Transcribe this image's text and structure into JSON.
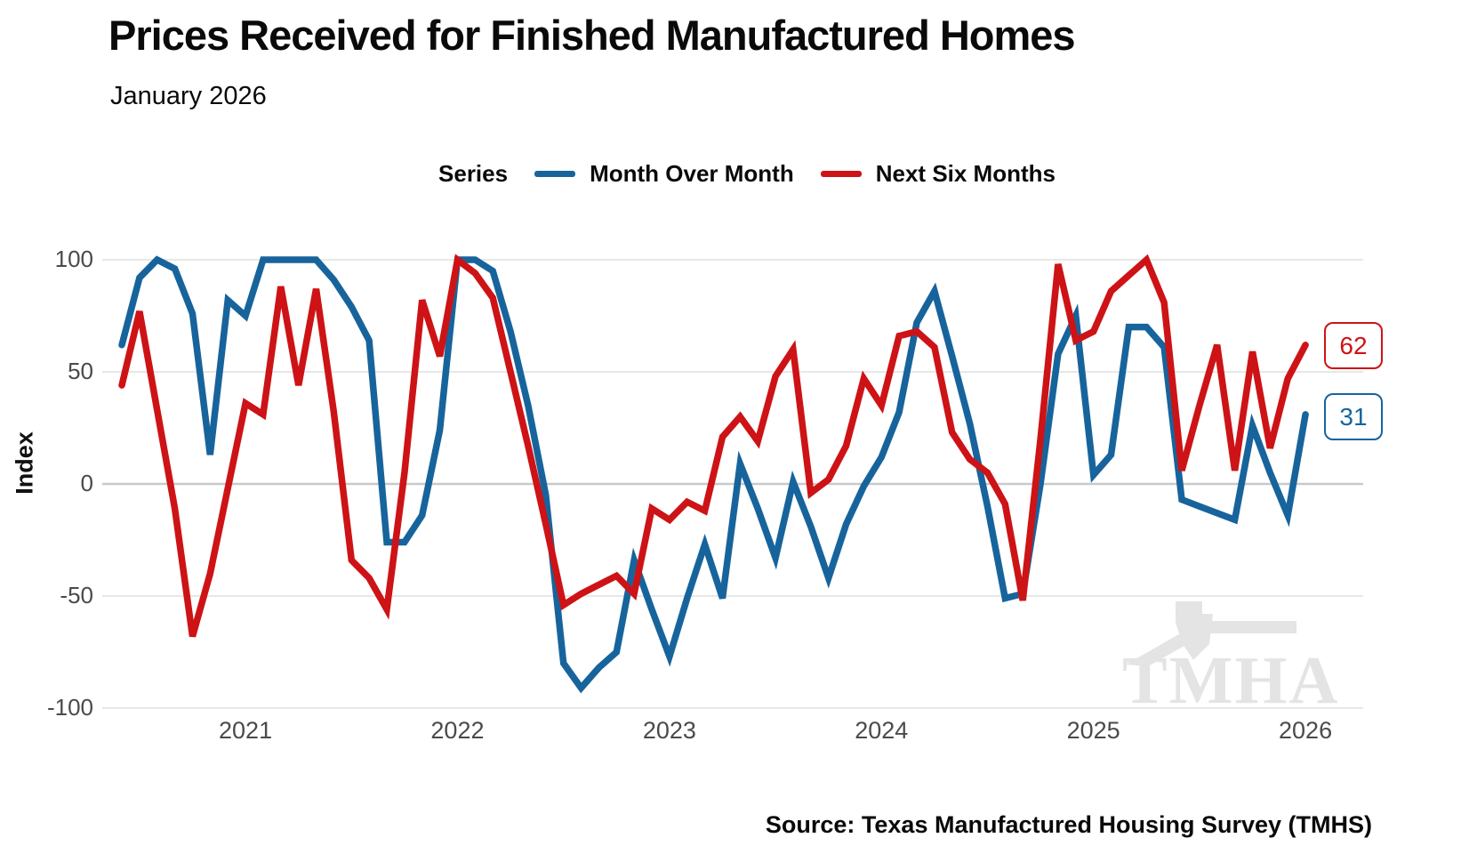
{
  "header": {
    "title": "Prices Received for Finished Manufactured Homes",
    "subtitle": "January 2026"
  },
  "source": {
    "text": "Source: Texas Manufactured Housing Survey (TMHS)"
  },
  "watermark": {
    "text": "TMHA"
  },
  "chart_data": {
    "type": "line",
    "title": "Prices Received for Finished Manufactured Homes",
    "subtitle": "January 2026",
    "legend_title": "Series",
    "legend_position": "top-center",
    "ylabel": "Index",
    "xlabel": "",
    "ylim": [
      -100,
      100
    ],
    "grid": "horizontal",
    "x_start": "2020-06",
    "x_end": "2026-01",
    "x_frequency": "monthly",
    "x_tick_labels": [
      "2021",
      "2022",
      "2023",
      "2024",
      "2025",
      "2026"
    ],
    "y_ticks": [
      100,
      50,
      0,
      -50,
      -100
    ],
    "end_labels": {
      "next_six_months": "62",
      "month_over_month": "31"
    },
    "series": [
      {
        "name": "Month Over Month",
        "color": "#17649C",
        "values": [
          62,
          92,
          100,
          96,
          76,
          13,
          82,
          75,
          100,
          100,
          100,
          100,
          91,
          79,
          64,
          -26,
          -26,
          -14,
          24,
          100,
          100,
          95,
          68,
          35,
          -5,
          -80,
          -91,
          -82,
          -75,
          -34,
          -56,
          -77,
          -51,
          -27,
          -51,
          9,
          -11,
          -33,
          1,
          -19,
          -42,
          -18,
          -1,
          12,
          32,
          72,
          86,
          57,
          27,
          -10,
          -51,
          -49,
          0,
          58,
          75,
          4,
          13,
          70,
          70,
          61,
          -7,
          -10,
          -13,
          -16,
          26,
          5,
          -14,
          31
        ]
      },
      {
        "name": "Next Six Months",
        "color": "#CD1316",
        "values": [
          44,
          77,
          33,
          -11,
          -68,
          -40,
          -2,
          36,
          31,
          88,
          44,
          87,
          32,
          -34,
          -42,
          -56,
          5,
          82,
          57,
          100,
          94,
          83,
          50,
          17,
          -18,
          -54,
          -49,
          -45,
          -41,
          -49,
          -11,
          -16,
          -8,
          -12,
          21,
          30,
          19,
          48,
          60,
          -4,
          2,
          17,
          47,
          35,
          66,
          68,
          61,
          23,
          11,
          5,
          -9,
          -52,
          20,
          98,
          64,
          68,
          86,
          93,
          100,
          81,
          6,
          35,
          62,
          6,
          59,
          16,
          47,
          62
        ]
      }
    ]
  }
}
